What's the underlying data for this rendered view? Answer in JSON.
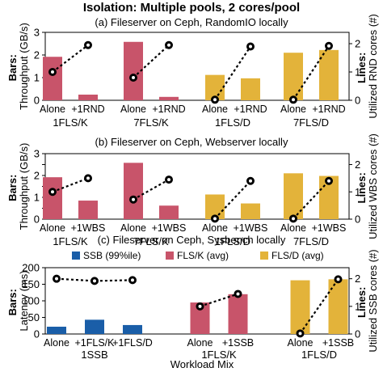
{
  "figure": {
    "title": "Isolation: Multiple pools, 2 cores/pool",
    "xlabel": "Workload Mix"
  },
  "colors": {
    "FLS/K": "#c8546a",
    "FLS/D": "#e3b33a",
    "SSB": "#1a5ea8",
    "line": "#000000"
  },
  "chart_data": [
    {
      "type": "bar",
      "panel": "a",
      "title": "(a) Fileserver on Ceph, RandomIO locally",
      "ylabel_bold": "Bars:",
      "ylabel": "Throughput (GB/s)",
      "ylim": [
        0,
        3
      ],
      "yticks": [
        0,
        1,
        2,
        3
      ],
      "ylabel_right_bold": "Lines:",
      "ylabel_right": "Utilized RND cores (#)",
      "ylim_right": [
        0,
        2.4
      ],
      "yticks_right": [
        0,
        1,
        2
      ],
      "groups": [
        {
          "name": "1FLS/K",
          "color_key": "FLS/K",
          "categories": [
            "Alone",
            "+1RND"
          ],
          "values": [
            1.92,
            0.25
          ],
          "line": [
            1.0,
            1.95
          ]
        },
        {
          "name": "7FLS/K",
          "color_key": "FLS/K",
          "categories": [
            "Alone",
            "+1RND"
          ],
          "values": [
            2.58,
            0.15
          ],
          "line": [
            0.8,
            1.95
          ]
        },
        {
          "name": "1FLS/D",
          "color_key": "FLS/D",
          "categories": [
            "Alone",
            "+1RND"
          ],
          "values": [
            1.12,
            0.97
          ],
          "line": [
            0.02,
            1.9
          ]
        },
        {
          "name": "7FLS/D",
          "color_key": "FLS/D",
          "categories": [
            "Alone",
            "+1RND"
          ],
          "values": [
            2.1,
            2.22
          ],
          "line": [
            0.02,
            1.92
          ]
        }
      ]
    },
    {
      "type": "bar",
      "panel": "b",
      "title": "(b) Fileserver on Ceph, Webserver locally",
      "ylabel_bold": "Bars:",
      "ylabel": "Throughput (GB/s)",
      "ylim": [
        0,
        3
      ],
      "yticks": [
        0,
        0.5,
        1,
        1.5,
        2,
        2.5,
        3
      ],
      "ylabel_right_bold": "Lines:",
      "ylabel_right": "Utilized WBS cores (#)",
      "ylim_right": [
        0,
        2.4
      ],
      "yticks_right": [
        0,
        1,
        2
      ],
      "groups": [
        {
          "name": "1FLS/K",
          "color_key": "FLS/K",
          "categories": [
            "Alone",
            "+1WBS"
          ],
          "values": [
            1.92,
            0.85
          ],
          "line": [
            1.0,
            1.5
          ]
        },
        {
          "name": "7FLS/K",
          "color_key": "FLS/K",
          "categories": [
            "Alone",
            "+1WBS"
          ],
          "values": [
            2.58,
            0.62
          ],
          "line": [
            0.72,
            1.45
          ]
        },
        {
          "name": "1FLS/D",
          "color_key": "FLS/D",
          "categories": [
            "Alone",
            "+1WBS"
          ],
          "values": [
            1.13,
            0.72
          ],
          "line": [
            0.02,
            1.4
          ]
        },
        {
          "name": "7FLS/D",
          "color_key": "FLS/D",
          "categories": [
            "Alone",
            "+1WBS"
          ],
          "values": [
            2.1,
            1.98
          ],
          "line": [
            0.02,
            1.4
          ]
        }
      ]
    },
    {
      "type": "bar",
      "panel": "c",
      "title": "(c) Fileserver on Ceph, Sysbench locally",
      "ylabel_bold": "Bars:",
      "ylabel": "Latency (ms)",
      "ylim": [
        0,
        200
      ],
      "yticks": [
        0,
        50,
        100,
        150,
        200
      ],
      "ylabel_right_bold": "Lines:",
      "ylabel_right": "Utilized SSB cores (#)",
      "ylim_right": [
        0,
        2.4
      ],
      "yticks_right": [
        0,
        1,
        2
      ],
      "legend": [
        {
          "label": "SSB (99%ile)",
          "color_key": "SSB"
        },
        {
          "label": "FLS/K (avg)",
          "color_key": "FLS/K"
        },
        {
          "label": "FLS/D (avg)",
          "color_key": "FLS/D"
        }
      ],
      "legend_position": "top",
      "groups": [
        {
          "name": "1SSB",
          "color_key": "SSB",
          "categories": [
            "Alone",
            "+1FLS/K",
            "+1FLS/D"
          ],
          "values": [
            22,
            43,
            27
          ],
          "line": [
            2.0,
            1.92,
            1.95
          ]
        },
        {
          "name": "1FLS/K",
          "color_key": "FLS/K",
          "categories": [
            "Alone",
            "+1SSB"
          ],
          "values": [
            95,
            120
          ],
          "line": [
            1.0,
            1.45
          ]
        },
        {
          "name": "1FLS/D",
          "color_key": "FLS/D",
          "categories": [
            "Alone",
            "+1SSB"
          ],
          "values": [
            162,
            165
          ],
          "line": [
            0.02,
            1.98
          ]
        }
      ]
    }
  ]
}
